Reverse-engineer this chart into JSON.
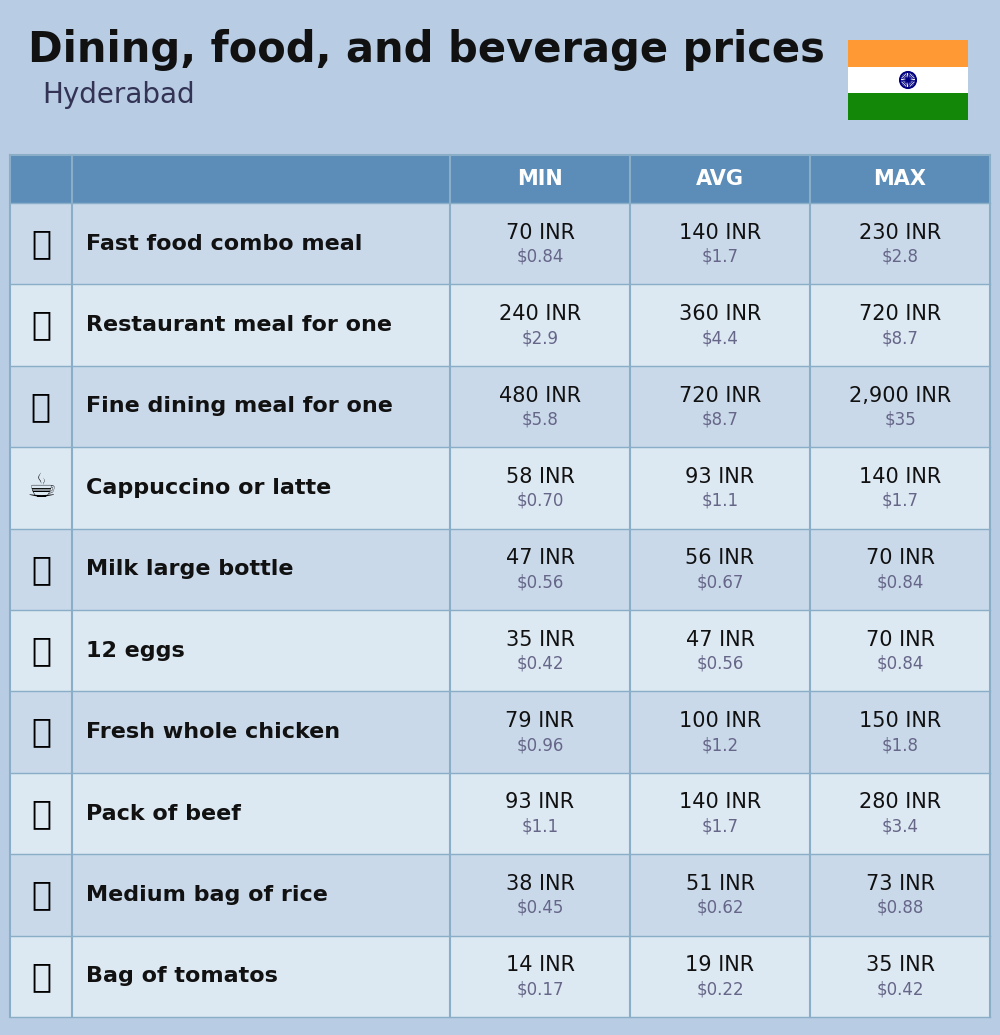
{
  "title": "Dining, food, and beverage prices",
  "subtitle": "Hyderabad",
  "bg_color": "#b8cce4",
  "header_color": "#5b8db8",
  "header_text_color": "#ffffff",
  "row_color_even": "#c9d9ea",
  "row_color_odd": "#dce8f2",
  "col_divider_color": "#8aaec8",
  "text_color_main": "#111111",
  "text_color_sub": "#666688",
  "columns": [
    "MIN",
    "AVG",
    "MAX"
  ],
  "rows": [
    {
      "label": "Fast food combo meal",
      "min_inr": "70 INR",
      "min_usd": "$0.84",
      "avg_inr": "140 INR",
      "avg_usd": "$1.7",
      "max_inr": "230 INR",
      "max_usd": "$2.8"
    },
    {
      "label": "Restaurant meal for one",
      "min_inr": "240 INR",
      "min_usd": "$2.9",
      "avg_inr": "360 INR",
      "avg_usd": "$4.4",
      "max_inr": "720 INR",
      "max_usd": "$8.7"
    },
    {
      "label": "Fine dining meal for one",
      "min_inr": "480 INR",
      "min_usd": "$5.8",
      "avg_inr": "720 INR",
      "avg_usd": "$8.7",
      "max_inr": "2,900 INR",
      "max_usd": "$35"
    },
    {
      "label": "Cappuccino or latte",
      "min_inr": "58 INR",
      "min_usd": "$0.70",
      "avg_inr": "93 INR",
      "avg_usd": "$1.1",
      "max_inr": "140 INR",
      "max_usd": "$1.7"
    },
    {
      "label": "Milk large bottle",
      "min_inr": "47 INR",
      "min_usd": "$0.56",
      "avg_inr": "56 INR",
      "avg_usd": "$0.67",
      "max_inr": "70 INR",
      "max_usd": "$0.84"
    },
    {
      "label": "12 eggs",
      "min_inr": "35 INR",
      "min_usd": "$0.42",
      "avg_inr": "47 INR",
      "avg_usd": "$0.56",
      "max_inr": "70 INR",
      "max_usd": "$0.84"
    },
    {
      "label": "Fresh whole chicken",
      "min_inr": "79 INR",
      "min_usd": "$0.96",
      "avg_inr": "100 INR",
      "avg_usd": "$1.2",
      "max_inr": "150 INR",
      "max_usd": "$1.8"
    },
    {
      "label": "Pack of beef",
      "min_inr": "93 INR",
      "min_usd": "$1.1",
      "avg_inr": "140 INR",
      "avg_usd": "$1.7",
      "max_inr": "280 INR",
      "max_usd": "$3.4"
    },
    {
      "label": "Medium bag of rice",
      "min_inr": "38 INR",
      "min_usd": "$0.45",
      "avg_inr": "51 INR",
      "avg_usd": "$0.62",
      "max_inr": "73 INR",
      "max_usd": "$0.88"
    },
    {
      "label": "Bag of tomatos",
      "min_inr": "14 INR",
      "min_usd": "$0.17",
      "avg_inr": "19 INR",
      "avg_usd": "$0.22",
      "max_inr": "35 INR",
      "max_usd": "$0.42"
    }
  ],
  "flag_colors": [
    "#FF9933",
    "#FFFFFF",
    "#138808"
  ],
  "icon_texts": [
    "🍔",
    "🍳",
    "🍽️",
    "☕",
    "🥛",
    "🥚",
    "🐔",
    "🥩",
    "🍚",
    "🍅"
  ]
}
